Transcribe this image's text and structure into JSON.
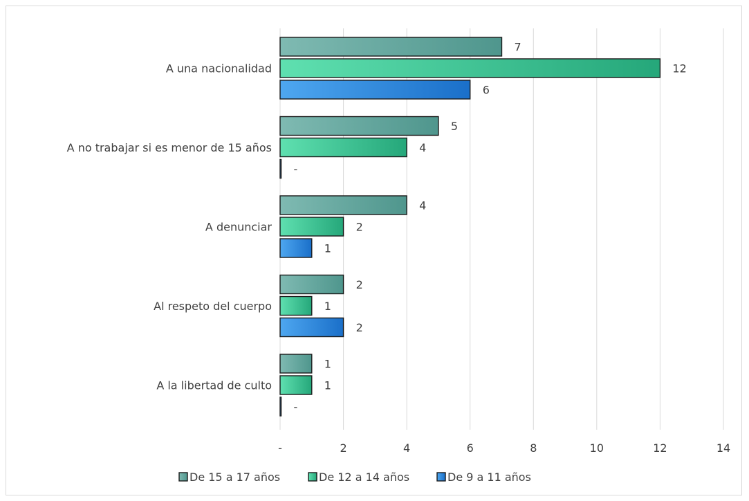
{
  "chart_data": {
    "type": "bar",
    "orientation": "horizontal",
    "categories": [
      "A una nacionalidad",
      "A no trabajar si es menor de 15 años",
      "A denunciar",
      "Al respeto del cuerpo",
      "A la libertad de culto"
    ],
    "series": [
      {
        "name": "De 15 a 17 años",
        "values": [
          7,
          5,
          4,
          2,
          1
        ],
        "labels": [
          "7",
          "5",
          "4",
          "2",
          "1"
        ],
        "color_start": "#7fbab2",
        "color_end": "#4f968d"
      },
      {
        "name": "De 12 a 14 años",
        "values": [
          12,
          4,
          2,
          1,
          1
        ],
        "labels": [
          "12",
          "4",
          "2",
          "1",
          "1"
        ],
        "color_start": "#5fe0b0",
        "color_end": "#25a77a"
      },
      {
        "name": "De 9 a 11 años",
        "values": [
          6,
          0,
          1,
          2,
          0
        ],
        "labels": [
          "6",
          "-",
          "1",
          "2",
          "-"
        ],
        "color_start": "#4ea7f0",
        "color_end": "#1a6fc9"
      }
    ],
    "xlim": [
      0,
      14
    ],
    "ticks": [
      0,
      2,
      4,
      6,
      8,
      10,
      12,
      14
    ],
    "tick_labels": [
      "-",
      "2",
      "4",
      "6",
      "8",
      "10",
      "12",
      "14"
    ],
    "title": "",
    "xlabel": "",
    "ylabel": "",
    "grid": "vertical",
    "legend": "bottom"
  }
}
